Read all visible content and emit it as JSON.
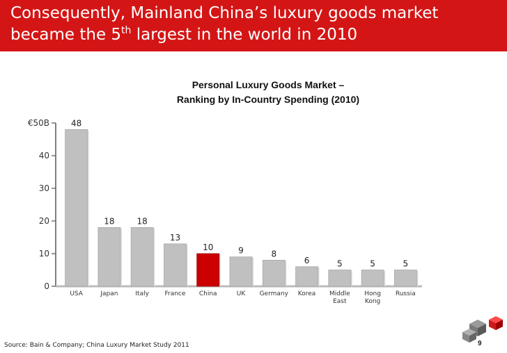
{
  "slide": {
    "title_line1": "Consequently, Mainland China’s luxury goods market",
    "title_line2_pre": "became the 5",
    "title_line2_sup": "th",
    "title_line2_post": " largest in the world in 2010",
    "page_number": "9",
    "source": "Source: Bain & Company; China Luxury Market Study 2011"
  },
  "colors": {
    "header": "#d41515",
    "bar": "#c0c0c0",
    "highlight": "#cc0000"
  },
  "chart_data": {
    "type": "bar",
    "title_line1": "Personal Luxury Goods Market –",
    "title_line2": "Ranking by In-Country Spending (2010)",
    "categories": [
      "USA",
      "Japan",
      "Italy",
      "France",
      "China",
      "UK",
      "Germany",
      "Korea",
      "Middle East",
      "Hong Kong",
      "Russia"
    ],
    "category_lines": [
      [
        "USA"
      ],
      [
        "Japan"
      ],
      [
        "Italy"
      ],
      [
        "France"
      ],
      [
        "China"
      ],
      [
        "UK"
      ],
      [
        "Germany"
      ],
      [
        "Korea"
      ],
      [
        "Middle",
        "East"
      ],
      [
        "Hong",
        "Kong"
      ],
      [
        "Russia"
      ]
    ],
    "values": [
      48,
      18,
      18,
      13,
      10,
      9,
      8,
      6,
      5,
      5,
      5
    ],
    "highlight_category": "China",
    "ylim": [
      0,
      50
    ],
    "yticks": [
      0,
      10,
      20,
      30,
      40,
      50
    ],
    "ytick_labels": [
      "0",
      "10",
      "20",
      "30",
      "40",
      "€50B"
    ],
    "xlabel": "",
    "ylabel": "",
    "grid": false
  }
}
